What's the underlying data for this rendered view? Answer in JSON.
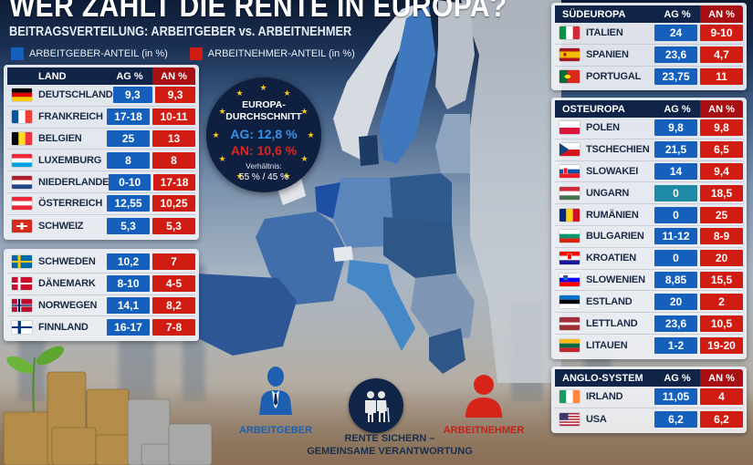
{
  "header": {
    "title": "WER ZAHLT DIE RENTE IN EUROPA?",
    "subtitle": "BEITRAGSVERTEILUNG: ARBEITGEBER vs. ARBEITNEHMER",
    "legend": [
      {
        "label": "ARBEITGEBER-ANTEIL (in %)",
        "color": "#1560bd"
      },
      {
        "label": "ARBEITNEHMER-ANTEIL (in %)",
        "color": "#d01c12"
      }
    ]
  },
  "colors": {
    "header_dark": "#0f2447",
    "header_red": "#a80f12",
    "ag_blue": "#1560bd",
    "an_red": "#d01c12",
    "teal_highlight": "#1e8aa6"
  },
  "tables": {
    "west": {
      "headers": {
        "land": "LAND",
        "ag": "AG %",
        "an": "AN %"
      },
      "rows": [
        {
          "country": "DEUTSCHLAND",
          "flag": "de",
          "ag": "9,3",
          "an": "9,3"
        },
        {
          "country": "FRANKREICH",
          "flag": "fr",
          "ag": "17-18",
          "an": "10-11"
        },
        {
          "country": "BELGIEN",
          "flag": "be",
          "ag": "25",
          "an": "13"
        },
        {
          "country": "LUXEMBURG",
          "flag": "lu",
          "ag": "8",
          "an": "8"
        },
        {
          "country": "NIEDERLANDE",
          "flag": "nl",
          "ag": "0-10",
          "an": "17-18"
        },
        {
          "country": "ÖSTERREICH",
          "flag": "at",
          "ag": "12,55",
          "an": "10,25"
        },
        {
          "country": "SCHWEIZ",
          "flag": "ch",
          "ag": "5,3",
          "an": "5,3"
        }
      ]
    },
    "nordic": {
      "rows": [
        {
          "country": "SCHWEDEN",
          "flag": "se",
          "ag": "10,2",
          "an": "7"
        },
        {
          "country": "DÄNEMARK",
          "flag": "dk",
          "ag": "8-10",
          "an": "4-5"
        },
        {
          "country": "NORWEGEN",
          "flag": "no",
          "ag": "14,1",
          "an": "8,2"
        },
        {
          "country": "FINNLAND",
          "flag": "fi",
          "ag": "16-17",
          "an": "7-8"
        }
      ]
    },
    "south": {
      "headers": {
        "land": "SÜDEUROPA",
        "ag": "AG %",
        "an": "AN %"
      },
      "rows": [
        {
          "country": "ITALIEN",
          "flag": "it",
          "ag": "24",
          "an": "9-10"
        },
        {
          "country": "SPANIEN",
          "flag": "es",
          "ag": "23,6",
          "an": "4,7"
        },
        {
          "country": "PORTUGAL",
          "flag": "pt",
          "ag": "23,75",
          "an": "11"
        }
      ]
    },
    "east": {
      "headers": {
        "land": "OSTEUROPA",
        "ag": "AG %",
        "an": "AN %"
      },
      "rows": [
        {
          "country": "POLEN",
          "flag": "pl",
          "ag": "9,8",
          "an": "9,8"
        },
        {
          "country": "TSCHECHIEN",
          "flag": "cz",
          "ag": "21,5",
          "an": "6,5"
        },
        {
          "country": "SLOWAKEI",
          "flag": "sk",
          "ag": "14",
          "an": "9,4"
        },
        {
          "country": "UNGARN",
          "flag": "hu",
          "ag": "0",
          "an": "18,5"
        },
        {
          "country": "RUMÄNIEN",
          "flag": "ro",
          "ag": "0",
          "an": "25"
        },
        {
          "country": "BULGARIEN",
          "flag": "bg",
          "ag": "11-12",
          "an": "8-9"
        },
        {
          "country": "KROATIEN",
          "flag": "hr",
          "ag": "0",
          "an": "20"
        },
        {
          "country": "SLOWENIEN",
          "flag": "si",
          "ag": "8,85",
          "an": "15,5"
        },
        {
          "country": "ESTLAND",
          "flag": "ee",
          "ag": "20",
          "an": "2"
        },
        {
          "country": "LETTLAND",
          "flag": "lv",
          "ag": "23,6",
          "an": "10,5"
        },
        {
          "country": "LITAUEN",
          "flag": "lt",
          "ag": "1-2",
          "an": "19-20"
        }
      ]
    },
    "anglo": {
      "headers": {
        "land": "ANGLO-SYSTEM",
        "ag": "AG %",
        "an": "AN %"
      },
      "rows": [
        {
          "country": "IRLAND",
          "flag": "ie",
          "ag": "11,05",
          "an": "4"
        },
        {
          "country": "USA",
          "flag": "us",
          "ag": "6,2",
          "an": "6,2"
        }
      ]
    }
  },
  "eu_average": {
    "title_line1": "EUROPA-",
    "title_line2": "DURCHSCHNITT",
    "ag": "AG: 12,8 %",
    "an": "AN: 10,6 %",
    "ratio_label": "Verhältnis:",
    "ratio": "55 % / 45 %",
    "icon": "eu-stars-icon"
  },
  "bottom": {
    "employer_label": "ARBEITGEBER",
    "employee_label": "ARBEITNEHMER",
    "center_line1": "RENTE SICHERN –",
    "center_line2": "GEMEINSAME VERANTWORTUNG",
    "icons": [
      "businessman-icon",
      "elderly-couple-icon",
      "person-icon",
      "coins-plant-icon"
    ]
  }
}
